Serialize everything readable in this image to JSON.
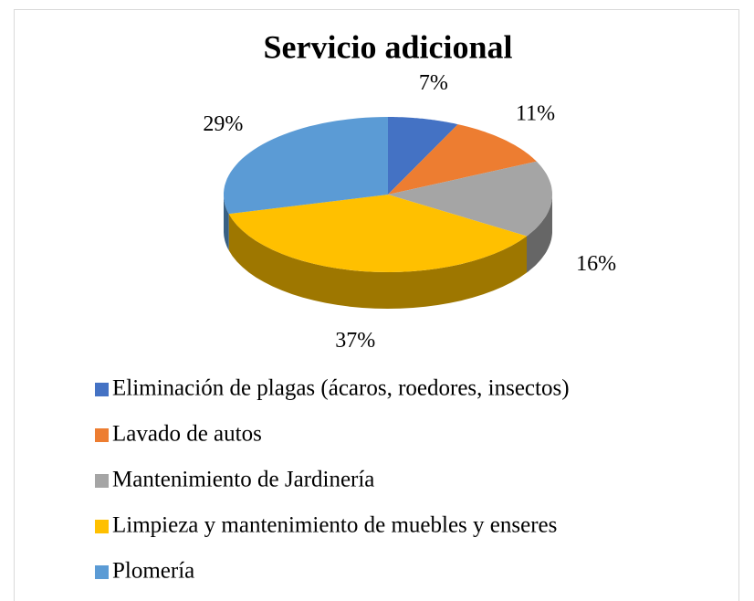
{
  "chart_data": {
    "type": "pie",
    "title": "Servicio adicional",
    "categories": [
      "Eliminación de plagas (ácaros, roedores, insectos)",
      "Lavado de autos",
      "Mantenimiento de Jardinería",
      "Limpieza y mantenimiento de muebles y enseres",
      "Plomería"
    ],
    "values": [
      7,
      11,
      16,
      37,
      29
    ],
    "value_labels": [
      "7%",
      "11%",
      "16%",
      "37%",
      "29%"
    ],
    "colors": [
      "#4472c4",
      "#ed7d31",
      "#a5a5a5",
      "#ffc000",
      "#5b9bd5"
    ],
    "legend": "bottom"
  }
}
